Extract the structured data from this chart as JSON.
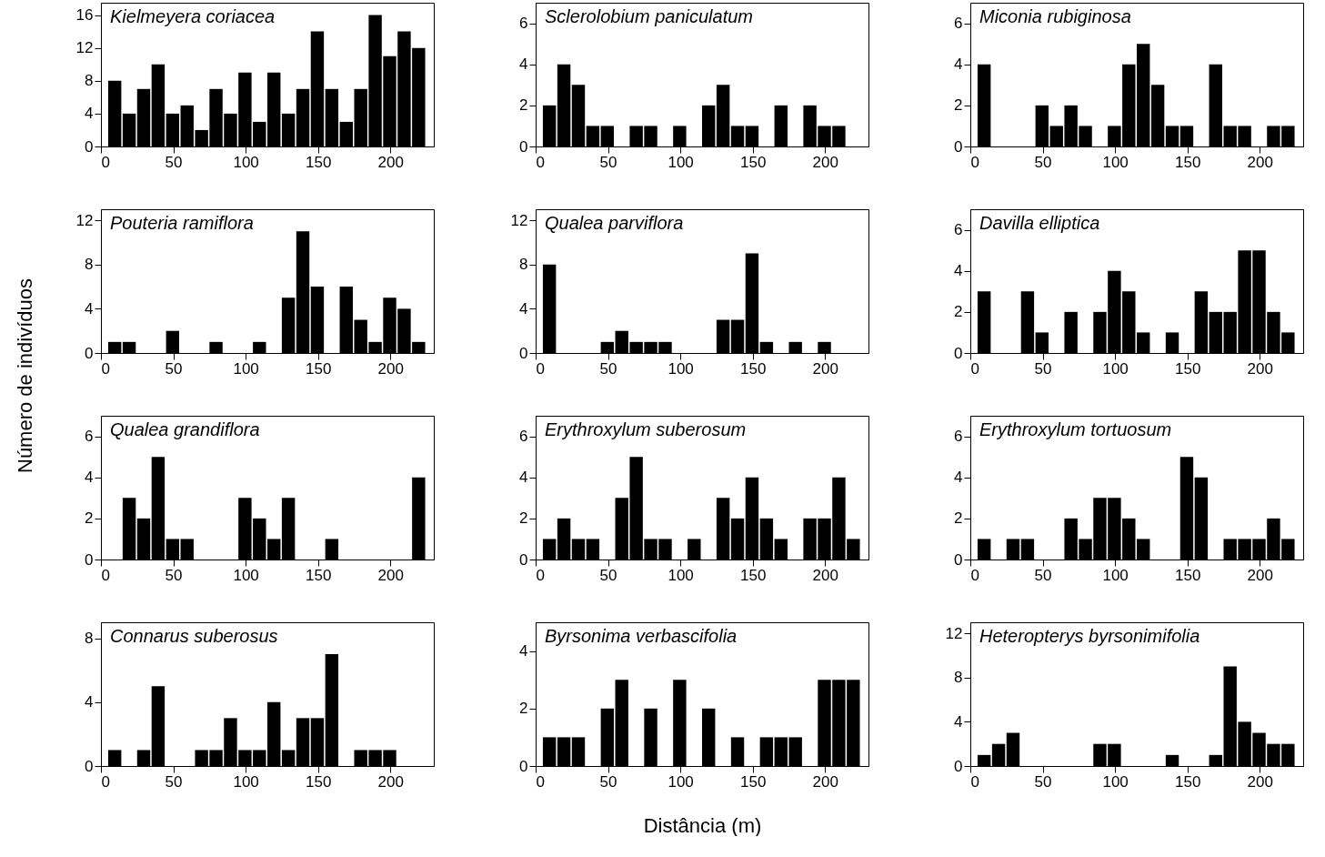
{
  "chart_data": [
    {
      "type": "histogram",
      "title": "Kielmeyera coriacea",
      "bins": [
        5,
        15,
        25,
        35,
        45,
        55,
        65,
        75,
        85,
        95,
        105,
        115,
        125,
        135,
        145,
        155,
        165,
        175,
        185,
        195,
        205,
        215,
        225
      ],
      "values": [
        8,
        4,
        7,
        10,
        4,
        5,
        2,
        7,
        4,
        9,
        3,
        9,
        4,
        7,
        14,
        7,
        3,
        7,
        16,
        11,
        14,
        12
      ],
      "color": "#000000",
      "xlim": [
        0,
        230
      ],
      "xticks": [
        0,
        50,
        100,
        150,
        200
      ],
      "ylim": [
        0,
        17.5
      ],
      "yticks": [
        0,
        4,
        8,
        12,
        16
      ]
    },
    {
      "type": "histogram",
      "title": "Sclerolobium paniculatum",
      "bins": [
        5,
        15,
        25,
        35,
        45,
        55,
        65,
        75,
        85,
        95,
        105,
        115,
        125,
        135,
        145,
        155,
        165,
        175,
        185,
        195,
        205,
        215,
        225
      ],
      "values": [
        2,
        4,
        3,
        1,
        1,
        0,
        1,
        1,
        0,
        1,
        0,
        2,
        3,
        1,
        1,
        0,
        2,
        0,
        2,
        1,
        1,
        0
      ],
      "color": "#000000",
      "xlim": [
        0,
        230
      ],
      "xticks": [
        0,
        50,
        100,
        150,
        200
      ],
      "ylim": [
        0,
        7
      ],
      "yticks": [
        0,
        2,
        4,
        6
      ]
    },
    {
      "type": "histogram",
      "title": "Miconia rubiginosa",
      "bins": [
        5,
        15,
        25,
        35,
        45,
        55,
        65,
        75,
        85,
        95,
        105,
        115,
        125,
        135,
        145,
        155,
        165,
        175,
        185,
        195,
        205,
        215,
        225
      ],
      "values": [
        4,
        0,
        0,
        0,
        2,
        1,
        2,
        1,
        0,
        1,
        4,
        5,
        3,
        1,
        1,
        0,
        4,
        1,
        1,
        0,
        1,
        1
      ],
      "color": "#000000",
      "xlim": [
        0,
        230
      ],
      "xticks": [
        0,
        50,
        100,
        150,
        200
      ],
      "ylim": [
        0,
        7
      ],
      "yticks": [
        0,
        2,
        4,
        6
      ]
    },
    {
      "type": "histogram",
      "title": "Pouteria ramiflora",
      "ylabel": "Número de indivíduos",
      "bins": [
        5,
        15,
        25,
        35,
        45,
        55,
        65,
        75,
        85,
        95,
        105,
        115,
        125,
        135,
        145,
        155,
        165,
        175,
        185,
        195,
        205,
        215,
        225
      ],
      "values": [
        1,
        1,
        0,
        0,
        2,
        0,
        0,
        1,
        0,
        0,
        1,
        0,
        5,
        11,
        6,
        0,
        6,
        3,
        1,
        5,
        4,
        1
      ],
      "color": "#000000",
      "xlim": [
        0,
        230
      ],
      "xticks": [
        0,
        50,
        100,
        150,
        200
      ],
      "ylim": [
        0,
        13
      ],
      "yticks": [
        0,
        4,
        8,
        12
      ]
    },
    {
      "type": "histogram",
      "title": "Qualea parviflora",
      "bins": [
        5,
        15,
        25,
        35,
        45,
        55,
        65,
        75,
        85,
        95,
        105,
        115,
        125,
        135,
        145,
        155,
        165,
        175,
        185,
        195,
        205,
        215,
        225
      ],
      "values": [
        8,
        0,
        0,
        0,
        1,
        2,
        1,
        1,
        1,
        0,
        0,
        0,
        3,
        3,
        9,
        1,
        0,
        1,
        0,
        1,
        0,
        0
      ],
      "color": "#000000",
      "xlim": [
        0,
        230
      ],
      "xticks": [
        0,
        50,
        100,
        150,
        200
      ],
      "ylim": [
        0,
        13
      ],
      "yticks": [
        0,
        4,
        8,
        12
      ]
    },
    {
      "type": "histogram",
      "title": "Davilla elliptica",
      "bins": [
        5,
        15,
        25,
        35,
        45,
        55,
        65,
        75,
        85,
        95,
        105,
        115,
        125,
        135,
        145,
        155,
        165,
        175,
        185,
        195,
        205,
        215,
        225
      ],
      "values": [
        3,
        0,
        0,
        3,
        1,
        0,
        2,
        0,
        2,
        4,
        3,
        1,
        0,
        1,
        0,
        3,
        2,
        2,
        5,
        5,
        2,
        1
      ],
      "color": "#000000",
      "xlim": [
        0,
        230
      ],
      "xticks": [
        0,
        50,
        100,
        150,
        200
      ],
      "ylim": [
        0,
        7
      ],
      "yticks": [
        0,
        2,
        4,
        6
      ]
    },
    {
      "type": "histogram",
      "title": "Qualea grandiflora",
      "bins": [
        5,
        15,
        25,
        35,
        45,
        55,
        65,
        75,
        85,
        95,
        105,
        115,
        125,
        135,
        145,
        155,
        165,
        175,
        185,
        195,
        205,
        215,
        225
      ],
      "values": [
        0,
        3,
        2,
        5,
        1,
        1,
        0,
        0,
        0,
        3,
        2,
        1,
        3,
        0,
        0,
        1,
        0,
        0,
        0,
        0,
        0,
        4
      ],
      "color": "#000000",
      "xlim": [
        0,
        230
      ],
      "xticks": [
        0,
        50,
        100,
        150,
        200
      ],
      "ylim": [
        0,
        7
      ],
      "yticks": [
        0,
        2,
        4,
        6
      ]
    },
    {
      "type": "histogram",
      "title": "Erythroxylum suberosum",
      "bins": [
        5,
        15,
        25,
        35,
        45,
        55,
        65,
        75,
        85,
        95,
        105,
        115,
        125,
        135,
        145,
        155,
        165,
        175,
        185,
        195,
        205,
        215,
        225
      ],
      "values": [
        1,
        2,
        1,
        1,
        0,
        3,
        5,
        1,
        1,
        0,
        1,
        0,
        3,
        2,
        4,
        2,
        1,
        0,
        2,
        2,
        4,
        1
      ],
      "color": "#000000",
      "xlim": [
        0,
        230
      ],
      "xticks": [
        0,
        50,
        100,
        150,
        200
      ],
      "ylim": [
        0,
        7
      ],
      "yticks": [
        0,
        2,
        4,
        6
      ]
    },
    {
      "type": "histogram",
      "title": "Erythroxylum tortuosum",
      "bins": [
        5,
        15,
        25,
        35,
        45,
        55,
        65,
        75,
        85,
        95,
        105,
        115,
        125,
        135,
        145,
        155,
        165,
        175,
        185,
        195,
        205,
        215,
        225
      ],
      "values": [
        1,
        0,
        1,
        1,
        0,
        0,
        2,
        1,
        3,
        3,
        2,
        1,
        0,
        0,
        5,
        4,
        0,
        1,
        1,
        1,
        2,
        1
      ],
      "color": "#000000",
      "xlim": [
        0,
        230
      ],
      "xticks": [
        0,
        50,
        100,
        150,
        200
      ],
      "ylim": [
        0,
        7
      ],
      "yticks": [
        0,
        2,
        4,
        6
      ]
    },
    {
      "type": "histogram",
      "title": "Connarus suberosus",
      "bins": [
        5,
        15,
        25,
        35,
        45,
        55,
        65,
        75,
        85,
        95,
        105,
        115,
        125,
        135,
        145,
        155,
        165,
        175,
        185,
        195,
        205,
        215,
        225
      ],
      "values": [
        1,
        0,
        1,
        5,
        0,
        0,
        1,
        1,
        3,
        1,
        1,
        4,
        1,
        3,
        3,
        7,
        0,
        1,
        1,
        1,
        0,
        0
      ],
      "color": "#000000",
      "xlim": [
        0,
        230
      ],
      "xticks": [
        0,
        50,
        100,
        150,
        200
      ],
      "ylim": [
        0,
        9
      ],
      "yticks": [
        0,
        4,
        8
      ]
    },
    {
      "type": "histogram",
      "title": "Byrsonima verbascifolia",
      "xlabel": "Distância (m)",
      "bins": [
        5,
        15,
        25,
        35,
        45,
        55,
        65,
        75,
        85,
        95,
        105,
        115,
        125,
        135,
        145,
        155,
        165,
        175,
        185,
        195,
        205,
        215,
        225
      ],
      "values": [
        1,
        1,
        1,
        0,
        2,
        3,
        0,
        2,
        0,
        3,
        0,
        2,
        0,
        1,
        0,
        1,
        1,
        1,
        0,
        3,
        3,
        3
      ],
      "color": "#000000",
      "xlim": [
        0,
        230
      ],
      "xticks": [
        0,
        50,
        100,
        150,
        200
      ],
      "ylim": [
        0,
        5
      ],
      "yticks": [
        0,
        2,
        4
      ]
    },
    {
      "type": "histogram",
      "title": "Heteropterys byrsonimifolia",
      "bins": [
        5,
        15,
        25,
        35,
        45,
        55,
        65,
        75,
        85,
        95,
        105,
        115,
        125,
        135,
        145,
        155,
        165,
        175,
        185,
        195,
        205,
        215,
        225
      ],
      "values": [
        1,
        2,
        3,
        0,
        0,
        0,
        0,
        0,
        2,
        2,
        0,
        0,
        0,
        1,
        0,
        0,
        1,
        9,
        4,
        3,
        2,
        2
      ],
      "color": "#000000",
      "xlim": [
        0,
        230
      ],
      "xticks": [
        0,
        50,
        100,
        150,
        200
      ],
      "ylim": [
        0,
        13
      ],
      "yticks": [
        0,
        4,
        8,
        12
      ]
    }
  ]
}
